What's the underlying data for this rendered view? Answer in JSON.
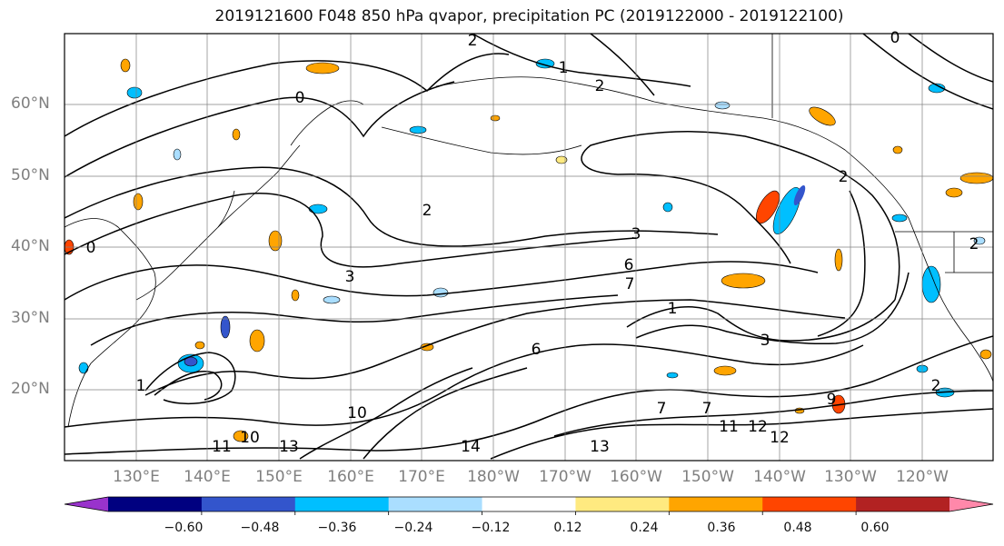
{
  "title": "2019121600 F048 850 hPa qvapor, precipitation PC (2019122000 - 2019122100)",
  "lat_labels": [
    "60°N",
    "50°N",
    "40°N",
    "30°N",
    "20°N"
  ],
  "lon_labels": [
    "130°E",
    "140°E",
    "150°E",
    "160°E",
    "170°E",
    "180°W",
    "170°W",
    "160°W",
    "150°W",
    "140°W",
    "130°W",
    "120°W"
  ],
  "colorbar": {
    "colors": [
      "#9933cc",
      "#000080",
      "#3355cc",
      "#00bfff",
      "#aadeff",
      "#ffffff",
      "#ffea80",
      "#ffa500",
      "#ff4500",
      "#b22222",
      "#ff88aa"
    ],
    "tick_labels": [
      "−0.60",
      "−0.48",
      "−0.36",
      "−0.24",
      "−0.12",
      "0.12",
      "0.24",
      "0.36",
      "0.48",
      "0.60"
    ]
  },
  "contour_labels": [
    "0",
    "0",
    "0",
    "1",
    "1",
    "1",
    "2",
    "2",
    "2",
    "2",
    "2",
    "2",
    "3",
    "3",
    "3",
    "6",
    "6",
    "7",
    "7",
    "7",
    "9",
    "10",
    "10",
    "11",
    "11",
    "12",
    "12",
    "13",
    "13",
    "14"
  ]
}
